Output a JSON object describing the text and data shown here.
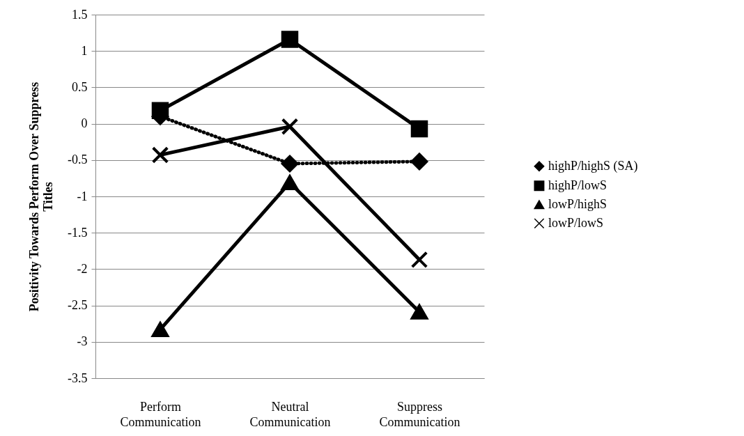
{
  "chart_data": {
    "type": "line",
    "ylabel": "Positivity Towards Perform Over Suppress Titles",
    "categories": [
      "Perform Communication",
      "Neutral Communication",
      "Suppress Communication"
    ],
    "ylim": [
      -3.5,
      1.5
    ],
    "yticks": [
      -3.5,
      -3,
      -2.5,
      -2,
      -1.5,
      -1,
      -0.5,
      0,
      0.5,
      1,
      1.5
    ],
    "grid": "y",
    "legend": "right",
    "series": [
      {
        "name": "highP/highS (SA)",
        "color": "#000000",
        "marker": "diamond",
        "line_style": "dotted",
        "values": [
          0.1,
          -0.55,
          -0.52
        ]
      },
      {
        "name": "highP/lowS",
        "color": "#000000",
        "marker": "square",
        "line_style": "solid",
        "values": [
          0.18,
          1.16,
          -0.07
        ]
      },
      {
        "name": "lowP/highS",
        "color": "#000000",
        "marker": "triangle",
        "line_style": "solid",
        "values": [
          -2.83,
          -0.81,
          -2.59
        ]
      },
      {
        "name": "lowP/lowS",
        "color": "#000000",
        "marker": "cross",
        "line_style": "solid",
        "values": [
          -0.43,
          -0.04,
          -1.87
        ]
      }
    ]
  }
}
